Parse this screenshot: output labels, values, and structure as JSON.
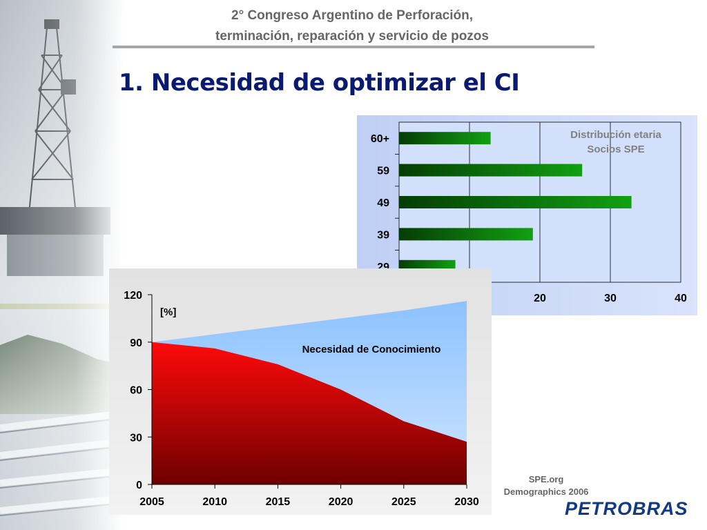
{
  "header": {
    "line1": "2° Congreso Argentino de Perforación,",
    "line2": "terminación, reparación y servicio de pozos"
  },
  "title": "1. Necesidad de optimizar el CI",
  "source": {
    "line1": "SPE.org",
    "line2": "Demographics 2006"
  },
  "logo": "PETROBRAS",
  "colors": {
    "title": "#0a1a6e",
    "bar_green": "#0b8a0b",
    "area_red": "#e00000",
    "area_blue": "#9ccbff",
    "bar_panel": "#c6d4f5"
  },
  "chart_data": [
    {
      "type": "bar",
      "orientation": "horizontal",
      "title": "Distribución etaria Socios SPE",
      "title_lines": [
        "Distribución etaria",
        "Socios SPE"
      ],
      "categories": [
        "60+",
        "59",
        "49",
        "39",
        "29"
      ],
      "values": [
        13,
        26,
        33,
        19,
        8
      ],
      "xlim": [
        0,
        40
      ],
      "xticks_visible": [
        "20",
        "30",
        "40"
      ],
      "grid": true
    },
    {
      "type": "area",
      "x": [
        2005,
        2010,
        2015,
        2020,
        2025,
        2030
      ],
      "xticks": [
        "2005",
        "2010",
        "2015",
        "2020",
        "2025",
        "2030"
      ],
      "ylim": [
        0,
        120
      ],
      "yticks": [
        "0",
        "30",
        "60",
        "90",
        "120"
      ],
      "ylabel": "[%]",
      "series": [
        {
          "name": "Necesidad de Conocimiento",
          "values": [
            90,
            95,
            100,
            105,
            110,
            116
          ]
        },
        {
          "name": "",
          "values": [
            90,
            86,
            76,
            60,
            40,
            27
          ]
        }
      ]
    }
  ]
}
